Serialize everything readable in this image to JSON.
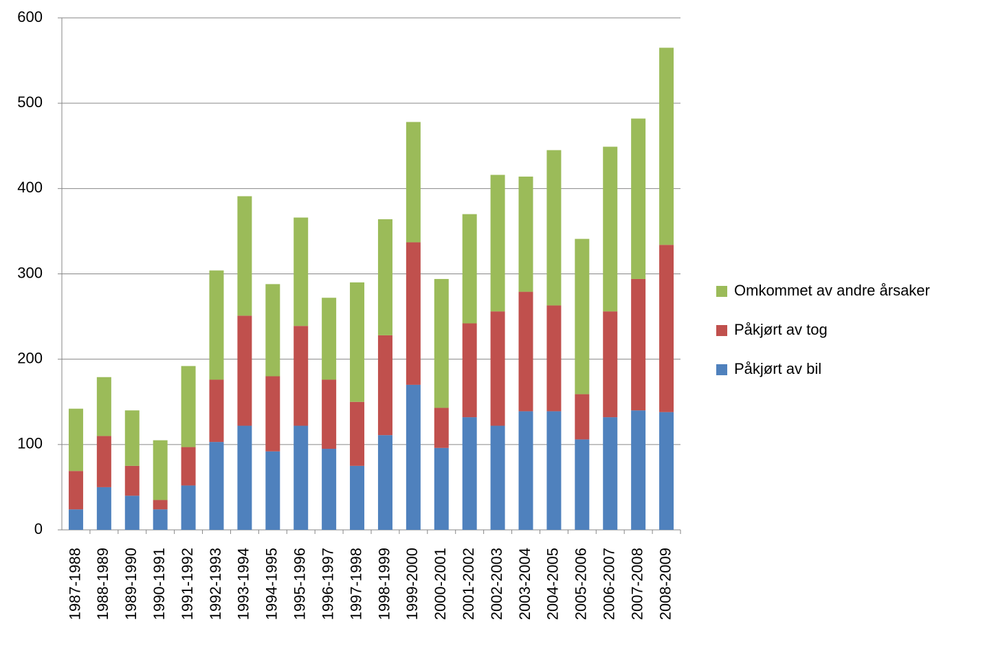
{
  "chart_data": {
    "type": "stacked_bar",
    "categories": [
      "1987-1988",
      "1988-1989",
      "1989-1990",
      "1990-1991",
      "1991-1992",
      "1992-1993",
      "1993-1994",
      "1994-1995",
      "1995-1996",
      "1996-1997",
      "1997-1998",
      "1998-1999",
      "1999-2000",
      "2000-2001",
      "2001-2002",
      "2002-2003",
      "2003-2004",
      "2004-2005",
      "2005-2006",
      "2006-2007",
      "2007-2008",
      "2008-2009"
    ],
    "series": [
      {
        "name": "Påkjørt av bil",
        "color": "#4f81bd",
        "values": [
          24,
          50,
          40,
          24,
          52,
          103,
          122,
          92,
          122,
          95,
          75,
          111,
          170,
          96,
          132,
          122,
          139,
          139,
          106,
          132,
          140,
          138
        ]
      },
      {
        "name": "Påkjørt av tog",
        "color": "#c0504d",
        "values": [
          45,
          60,
          35,
          11,
          45,
          73,
          129,
          88,
          117,
          81,
          75,
          117,
          167,
          47,
          110,
          134,
          140,
          124,
          53,
          124,
          154,
          196
        ]
      },
      {
        "name": "Omkommet av andre årsaker",
        "color": "#9bbb59",
        "values": [
          73,
          69,
          65,
          70,
          95,
          128,
          140,
          108,
          127,
          96,
          140,
          136,
          141,
          151,
          128,
          160,
          135,
          182,
          182,
          193,
          188,
          231
        ]
      }
    ],
    "ylim": [
      0,
      600
    ],
    "yticks": [
      0,
      100,
      200,
      300,
      400,
      500,
      600
    ],
    "grid": true,
    "legend": "right"
  }
}
